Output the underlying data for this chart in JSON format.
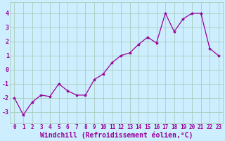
{
  "x": [
    0,
    1,
    2,
    3,
    4,
    5,
    6,
    7,
    8,
    9,
    10,
    11,
    12,
    13,
    14,
    15,
    16,
    17,
    18,
    19,
    20,
    21,
    22,
    23
  ],
  "y": [
    -2.0,
    -3.2,
    -2.3,
    -1.8,
    -1.9,
    -1.0,
    -1.5,
    -1.8,
    -1.8,
    -0.7,
    -0.3,
    0.5,
    1.0,
    1.2,
    1.8,
    2.3,
    1.9,
    4.0,
    2.7,
    3.6,
    4.0,
    4.0,
    1.5,
    1.0
  ],
  "line_color": "#990099",
  "marker": "*",
  "marker_size": 3.0,
  "bg_color": "#cceeff",
  "grid_color": "#aaccbb",
  "xlabel": "Windchill (Refroidissement éolien,°C)",
  "xlabel_color": "#990099",
  "xlim": [
    -0.5,
    23.5
  ],
  "ylim": [
    -3.8,
    4.8
  ],
  "yticks": [
    -3,
    -2,
    -1,
    0,
    1,
    2,
    3,
    4
  ],
  "xtick_labels": [
    "0",
    "1",
    "2",
    "3",
    "4",
    "5",
    "6",
    "7",
    "8",
    "9",
    "10",
    "11",
    "12",
    "13",
    "14",
    "15",
    "16",
    "17",
    "18",
    "19",
    "20",
    "21",
    "22",
    "23"
  ],
  "tick_color": "#990099",
  "tick_fontsize": 5.5,
  "xlabel_fontsize": 7.0
}
